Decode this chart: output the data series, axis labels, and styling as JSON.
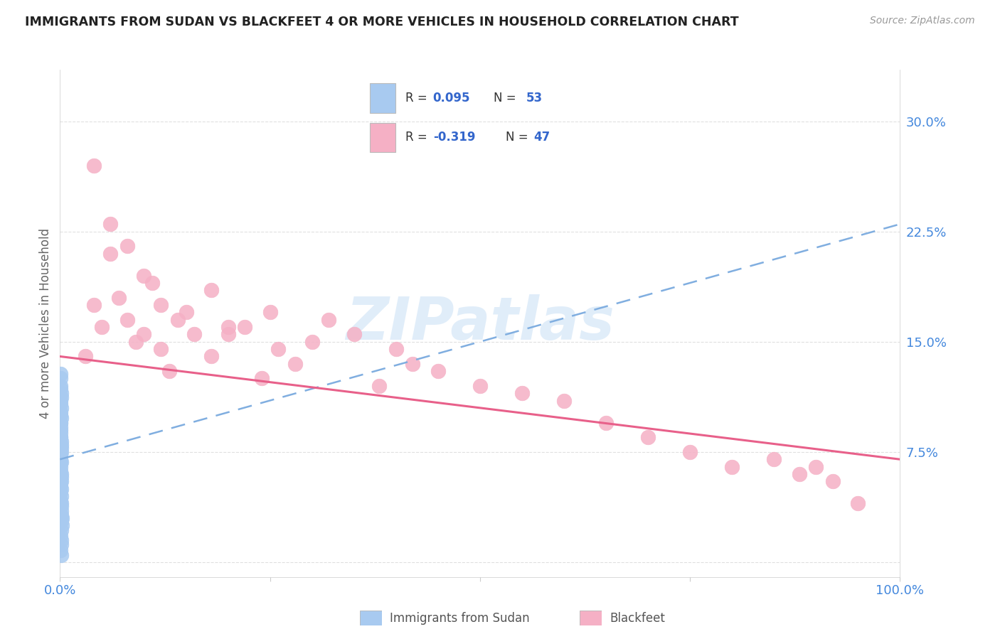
{
  "title": "IMMIGRANTS FROM SUDAN VS BLACKFEET 4 OR MORE VEHICLES IN HOUSEHOLD CORRELATION CHART",
  "source": "Source: ZipAtlas.com",
  "ylabel": "4 or more Vehicles in Household",
  "legend_label1": "Immigrants from Sudan",
  "legend_label2": "Blackfeet",
  "xlim": [
    0.0,
    1.0
  ],
  "ylim": [
    -0.01,
    0.335
  ],
  "yticks": [
    0.0,
    0.075,
    0.15,
    0.225,
    0.3
  ],
  "ytick_labels": [
    "",
    "7.5%",
    "15.0%",
    "22.5%",
    "30.0%"
  ],
  "blue_scatter": "#a8caf0",
  "pink_scatter": "#f5b0c5",
  "blue_line": "#4472c4",
  "pink_line": "#e8608a",
  "blue_dash": "#80aee0",
  "title_color": "#222222",
  "source_color": "#999999",
  "axis_tick_color": "#4488dd",
  "grid_color": "#e0e0e0",
  "watermark_color": "#c8dff5",
  "sudan_x": [
    0.0002,
    0.0003,
    0.0003,
    0.0004,
    0.0004,
    0.0005,
    0.0005,
    0.0006,
    0.0006,
    0.0007,
    0.0007,
    0.0008,
    0.0008,
    0.0009,
    0.0009,
    0.001,
    0.001,
    0.0011,
    0.0011,
    0.0012,
    0.0013,
    0.0013,
    0.0014,
    0.0015,
    0.0015,
    0.0016,
    0.0017,
    0.0018,
    0.0019,
    0.002,
    0.0003,
    0.0004,
    0.0005,
    0.0006,
    0.0007,
    0.0008,
    0.0009,
    0.001,
    0.0011,
    0.0012,
    0.0004,
    0.0005,
    0.0006,
    0.0007,
    0.0008,
    0.0009,
    0.001,
    0.0011,
    0.0012,
    0.0013,
    0.0014,
    0.0015,
    0.0016
  ],
  "sudan_y": [
    0.095,
    0.085,
    0.07,
    0.1,
    0.075,
    0.09,
    0.065,
    0.095,
    0.078,
    0.102,
    0.088,
    0.068,
    0.092,
    0.108,
    0.055,
    0.112,
    0.06,
    0.098,
    0.05,
    0.082,
    0.075,
    0.045,
    0.105,
    0.115,
    0.04,
    0.058,
    0.038,
    0.035,
    0.03,
    0.025,
    0.12,
    0.11,
    0.125,
    0.062,
    0.072,
    0.052,
    0.042,
    0.032,
    0.022,
    0.012,
    0.118,
    0.128,
    0.008,
    0.018,
    0.048,
    0.085,
    0.08,
    0.005,
    0.015,
    0.028,
    0.068,
    0.078,
    0.055
  ],
  "blackfeet_x": [
    0.03,
    0.04,
    0.05,
    0.06,
    0.07,
    0.08,
    0.09,
    0.1,
    0.11,
    0.12,
    0.13,
    0.14,
    0.16,
    0.18,
    0.2,
    0.22,
    0.24,
    0.26,
    0.28,
    0.3,
    0.32,
    0.35,
    0.38,
    0.4,
    0.42,
    0.45,
    0.5,
    0.55,
    0.6,
    0.65,
    0.7,
    0.75,
    0.8,
    0.85,
    0.88,
    0.9,
    0.92,
    0.95,
    0.04,
    0.06,
    0.08,
    0.1,
    0.12,
    0.15,
    0.18,
    0.2,
    0.25
  ],
  "blackfeet_y": [
    0.14,
    0.175,
    0.16,
    0.21,
    0.18,
    0.165,
    0.15,
    0.155,
    0.19,
    0.145,
    0.13,
    0.165,
    0.155,
    0.14,
    0.155,
    0.16,
    0.125,
    0.145,
    0.135,
    0.15,
    0.165,
    0.155,
    0.12,
    0.145,
    0.135,
    0.13,
    0.12,
    0.115,
    0.11,
    0.095,
    0.085,
    0.075,
    0.065,
    0.07,
    0.06,
    0.065,
    0.055,
    0.04,
    0.27,
    0.23,
    0.215,
    0.195,
    0.175,
    0.17,
    0.185,
    0.16,
    0.17
  ]
}
